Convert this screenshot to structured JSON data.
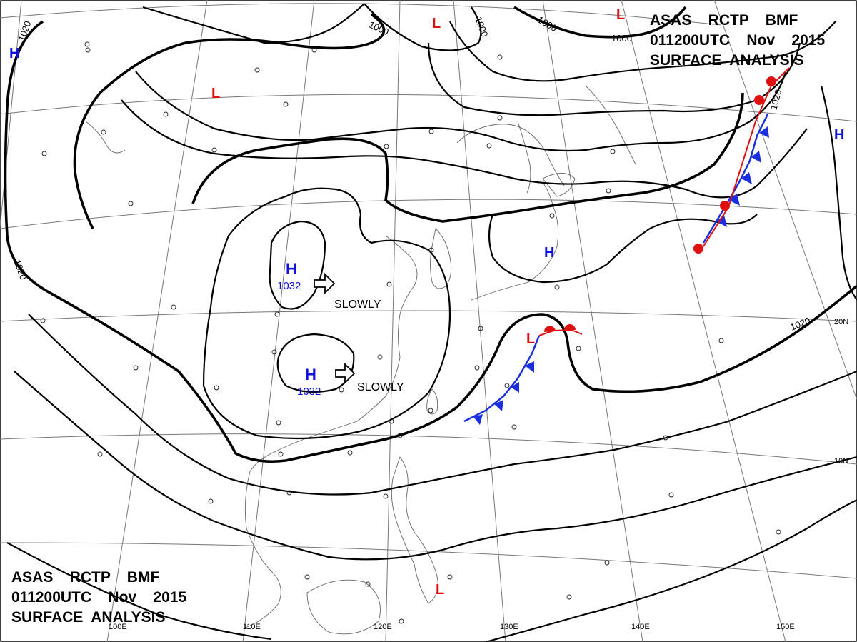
{
  "header": {
    "line1": "ASAS    RCTP    BMF",
    "line2": "011200UTC    Nov    2015",
    "line3": "SURFACE  ANALYSIS"
  },
  "footer": {
    "line1": "ASAS    RCTP    BMF",
    "line2": "011200UTC    Nov    2015",
    "line3": "SURFACE  ANALYSIS"
  },
  "isobar_labels": {
    "top_left": "1020",
    "left_mid": "1020",
    "top_1000a": "1000",
    "top_1000b": "1000",
    "top_1000c": "1000",
    "top_right": "1000",
    "right_front": "1020",
    "right_east": "1020"
  },
  "pressure_systems": {
    "high_west_label": "H",
    "high_west_value": "1032",
    "high_south_label": "H",
    "high_south_value": "1032",
    "high_japan": "H",
    "high_far_left": "H",
    "high_far_right": "H",
    "low_mongolia": "L",
    "low_top": "L",
    "low_top_right": "L",
    "low_front": "L",
    "low_philippines": "L"
  },
  "motion": {
    "west": "SLOWLY",
    "south": "SLOWLY"
  },
  "graticule": {
    "lon_labels": [
      "100E",
      "110E",
      "120E",
      "130E",
      "140E",
      "150E"
    ],
    "lat_labels": [
      "20N",
      "10N"
    ]
  },
  "colors": {
    "high": "#1010dd",
    "low": "#e01010",
    "cold_front": "#1a2fe0",
    "warm_front": "#e01010"
  }
}
